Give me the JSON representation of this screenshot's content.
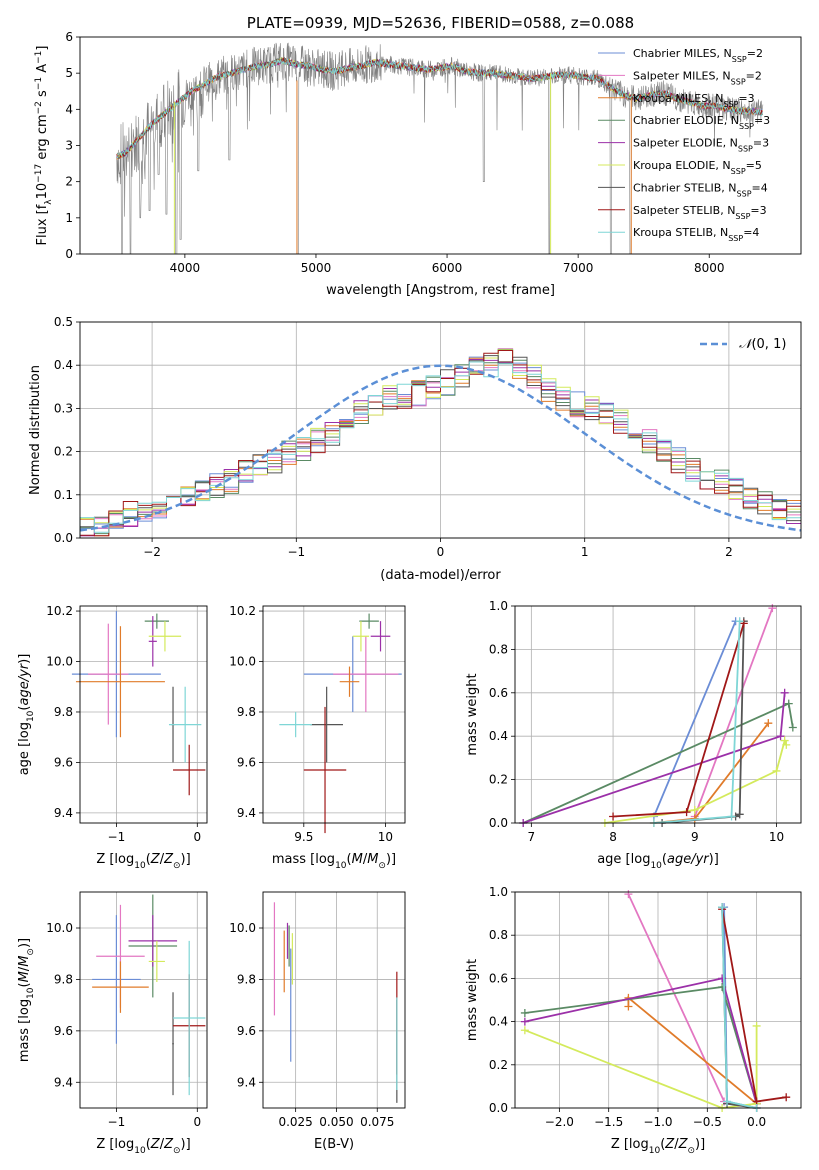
{
  "colors": {
    "Chabrier MILES": "#6b8dd6",
    "Salpeter MILES": "#e377c2",
    "Kroupa MILES": "#e07b2a",
    "Chabrier ELODIE": "#5a8a64",
    "Salpeter ELODIE": "#9b30a8",
    "Kroupa ELODIE": "#d4ea5c",
    "Chabrier STELIB": "#555555",
    "Salpeter STELIB": "#a01818",
    "Kroupa STELIB": "#7fd6d6",
    "data": "#808080",
    "gauss": "#5b8fd6"
  },
  "models": [
    {
      "key": "Chabrier MILES",
      "label": "Chabrier MILES, N",
      "nssp": "=2"
    },
    {
      "key": "Salpeter MILES",
      "label": "Salpeter MILES, N",
      "nssp": "=2"
    },
    {
      "key": "Kroupa MILES",
      "label": "Kroupa MILES, N",
      "nssp": "=3"
    },
    {
      "key": "Chabrier ELODIE",
      "label": "Chabrier ELODIE, N",
      "nssp": "=3"
    },
    {
      "key": "Salpeter ELODIE",
      "label": "Salpeter ELODIE, N",
      "nssp": "=3"
    },
    {
      "key": "Kroupa ELODIE",
      "label": "Kroupa ELODIE, N",
      "nssp": "=5"
    },
    {
      "key": "Chabrier STELIB",
      "label": "Chabrier STELIB, N",
      "nssp": "=4"
    },
    {
      "key": "Salpeter STELIB",
      "label": "Salpeter STELIB, N",
      "nssp": "=3"
    },
    {
      "key": "Kroupa STELIB",
      "label": "Kroupa STELIB, N",
      "nssp": "=4"
    }
  ],
  "chart_data": [
    {
      "type": "line",
      "title": "PLATE=0939, MJD=52636, FIBERID=0588, z=0.088",
      "xlabel": "wavelength [Angstrom, rest frame]",
      "ylabel": "Flux [f",
      "xlim": [
        3200,
        8700
      ],
      "ylim": [
        0,
        6
      ],
      "xticks": [
        4000,
        5000,
        6000,
        7000,
        8000
      ],
      "yticks": [
        0,
        1,
        2,
        3,
        4,
        5,
        6
      ],
      "spectrum_nodes": {
        "x": [
          3480,
          3550,
          3650,
          3750,
          3850,
          3950,
          4050,
          4150,
          4250,
          4350,
          4450,
          4550,
          4650,
          4750,
          4850,
          4950,
          5050,
          5150,
          5250,
          5350,
          5450,
          5550,
          5650,
          5750,
          5850,
          5950,
          6050,
          6150,
          6250,
          6350,
          6450,
          6550,
          6650,
          6750,
          6850,
          6950,
          7050,
          7150,
          7250,
          7350,
          7450,
          7550,
          7650,
          7750,
          7850,
          7950,
          8050,
          8150,
          8250,
          8350,
          8410
        ],
        "y": [
          2.7,
          2.8,
          3.2,
          3.6,
          3.9,
          4.2,
          4.5,
          4.7,
          4.9,
          5.0,
          5.1,
          5.2,
          5.25,
          5.35,
          5.25,
          5.2,
          5.1,
          5.05,
          5.15,
          5.2,
          5.3,
          5.25,
          5.2,
          5.15,
          5.1,
          5.15,
          5.2,
          5.05,
          5.0,
          5.0,
          4.95,
          4.9,
          4.85,
          4.9,
          4.95,
          4.95,
          4.9,
          4.85,
          4.6,
          4.4,
          4.3,
          4.4,
          4.45,
          4.3,
          4.2,
          4.1,
          4.1,
          4.0,
          3.95,
          3.95,
          3.9
        ]
      },
      "spectrum_dips": [
        {
          "x": 3520,
          "y": 0.0
        },
        {
          "x": 3585,
          "y": 0.0
        },
        {
          "x": 3660,
          "y": 1.0
        },
        {
          "x": 3730,
          "y": 1.2
        },
        {
          "x": 3800,
          "y": 2.2
        },
        {
          "x": 3860,
          "y": 1.1
        },
        {
          "x": 3934,
          "y": 0.0
        },
        {
          "x": 3968,
          "y": 0.4
        },
        {
          "x": 4102,
          "y": 2.3
        },
        {
          "x": 4340,
          "y": 2.6
        },
        {
          "x": 4861,
          "y": 0.0
        },
        {
          "x": 6280,
          "y": 2.0
        },
        {
          "x": 6780,
          "y": 0.0
        },
        {
          "x": 7250,
          "y": 0.0
        },
        {
          "x": 7400,
          "y": 0.0
        }
      ]
    },
    {
      "type": "bar",
      "xlabel": "(data-model)/error",
      "ylabel": "Normed distribution",
      "xlim": [
        -2.5,
        2.5
      ],
      "ylim": [
        0,
        0.5
      ],
      "xticks": [
        -2,
        -1,
        0,
        1,
        2
      ],
      "yticks": [
        0.0,
        0.1,
        0.2,
        0.3,
        0.4,
        0.5
      ],
      "legend": "$\\mathcal{N}(0,1)$",
      "bin_edges_start": -2.5,
      "bin_width": 0.1,
      "envelope": [
        0.025,
        0.025,
        0.04,
        0.055,
        0.06,
        0.075,
        0.08,
        0.095,
        0.11,
        0.12,
        0.13,
        0.15,
        0.165,
        0.18,
        0.195,
        0.205,
        0.225,
        0.24,
        0.26,
        0.29,
        0.31,
        0.325,
        0.33,
        0.335,
        0.35,
        0.36,
        0.375,
        0.39,
        0.4,
        0.41,
        0.395,
        0.375,
        0.34,
        0.32,
        0.31,
        0.3,
        0.285,
        0.27,
        0.25,
        0.225,
        0.2,
        0.18,
        0.16,
        0.14,
        0.13,
        0.11,
        0.095,
        0.085,
        0.07,
        0.06
      ]
    },
    {
      "type": "scatter",
      "xlabel": "Z [log",
      "ylabel": "age  [log",
      "xlim": [
        -1.45,
        0.12
      ],
      "ylim": [
        9.36,
        10.22
      ],
      "xticks": [
        -1,
        0
      ],
      "yticks": [
        9.4,
        9.6,
        9.8,
        10.0,
        10.2
      ],
      "points": [
        {
          "model": "Chabrier MILES",
          "x": -1.0,
          "y": 9.95,
          "xerr": 0.55,
          "yerr": 0.25
        },
        {
          "model": "Salpeter MILES",
          "x": -1.1,
          "y": 9.95,
          "xerr": 0.25,
          "yerr": 0.2
        },
        {
          "model": "Kroupa MILES",
          "x": -0.95,
          "y": 9.92,
          "xerr": 0.55,
          "yerr": 0.22
        },
        {
          "model": "Chabrier ELODIE",
          "x": -0.5,
          "y": 10.16,
          "xerr": 0.15,
          "yerr": 0.03
        },
        {
          "model": "Salpeter ELODIE",
          "x": -0.55,
          "y": 10.08,
          "xerr": 0.05,
          "yerr": 0.1
        },
        {
          "model": "Kroupa ELODIE",
          "x": -0.4,
          "y": 10.1,
          "xerr": 0.2,
          "yerr": 0.06
        },
        {
          "model": "Chabrier STELIB",
          "x": -0.3,
          "y": 9.75,
          "xerr": 0.02,
          "yerr": 0.15
        },
        {
          "model": "Salpeter STELIB",
          "x": -0.1,
          "y": 9.57,
          "xerr": 0.2,
          "yerr": 0.1
        },
        {
          "model": "Kroupa STELIB",
          "x": -0.15,
          "y": 9.75,
          "xerr": 0.2,
          "yerr": 0.15
        }
      ]
    },
    {
      "type": "scatter",
      "xlabel": "mass [log",
      "ylabel": "",
      "xlim": [
        9.25,
        10.12
      ],
      "ylim": [
        9.36,
        10.22
      ],
      "xticks": [
        9.5,
        10.0
      ],
      "yticks": [
        9.4,
        9.6,
        9.8,
        10.0,
        10.2
      ],
      "points": [
        {
          "model": "Chabrier MILES",
          "x": 9.8,
          "y": 9.95,
          "xerr": 0.3,
          "yerr": 0.15
        },
        {
          "model": "Salpeter MILES",
          "x": 9.88,
          "y": 9.95,
          "xerr": 0.2,
          "yerr": 0.15
        },
        {
          "model": "Kroupa MILES",
          "x": 9.78,
          "y": 9.92,
          "xerr": 0.06,
          "yerr": 0.06
        },
        {
          "model": "Chabrier ELODIE",
          "x": 9.9,
          "y": 10.16,
          "xerr": 0.06,
          "yerr": 0.03
        },
        {
          "model": "Salpeter ELODIE",
          "x": 9.97,
          "y": 10.1,
          "xerr": 0.06,
          "yerr": 0.06
        },
        {
          "model": "Kroupa ELODIE",
          "x": 9.85,
          "y": 10.1,
          "xerr": 0.05,
          "yerr": 0.06
        },
        {
          "model": "Chabrier STELIB",
          "x": 9.64,
          "y": 9.75,
          "xerr": 0.1,
          "yerr": 0.15
        },
        {
          "model": "Salpeter STELIB",
          "x": 9.63,
          "y": 9.57,
          "xerr": 0.13,
          "yerr": 0.25
        },
        {
          "model": "Kroupa STELIB",
          "x": 9.45,
          "y": 9.75,
          "xerr": 0.1,
          "yerr": 0.05
        }
      ]
    },
    {
      "type": "line",
      "xlabel": "age  [log",
      "ylabel": "mass weight",
      "xlim": [
        6.8,
        10.3
      ],
      "ylim": [
        0,
        1
      ],
      "xticks": [
        7,
        8,
        9,
        10
      ],
      "yticks": [
        0.0,
        0.2,
        0.4,
        0.6,
        0.8,
        1.0
      ],
      "series": [
        {
          "model": "Chabrier MILES",
          "x": [
            8.5,
            9.5
          ],
          "y": [
            0.03,
            0.93
          ]
        },
        {
          "model": "Salpeter MILES",
          "x": [
            9.0,
            9.95
          ],
          "y": [
            0.03,
            0.99
          ]
        },
        {
          "model": "Kroupa MILES",
          "x": [
            8.5,
            9.0,
            9.9
          ],
          "y": [
            0.0,
            0.02,
            0.46
          ]
        },
        {
          "model": "Chabrier ELODIE",
          "x": [
            6.9,
            10.15,
            10.2
          ],
          "y": [
            0.0,
            0.55,
            0.44
          ]
        },
        {
          "model": "Salpeter ELODIE",
          "x": [
            6.9,
            10.05,
            10.1
          ],
          "y": [
            0.0,
            0.4,
            0.6
          ]
        },
        {
          "model": "Kroupa ELODIE",
          "x": [
            7.9,
            9.0,
            10.0,
            10.1,
            10.12
          ],
          "y": [
            0.0,
            0.06,
            0.24,
            0.38,
            0.36
          ]
        },
        {
          "model": "Chabrier STELIB",
          "x": [
            8.6,
            9.5,
            9.55,
            9.6
          ],
          "y": [
            0.0,
            0.03,
            0.04,
            0.93
          ]
        },
        {
          "model": "Salpeter STELIB",
          "x": [
            8.0,
            8.9,
            9.6
          ],
          "y": [
            0.03,
            0.05,
            0.92
          ]
        },
        {
          "model": "Kroupa STELIB",
          "x": [
            8.5,
            9.45,
            9.55
          ],
          "y": [
            0.0,
            0.03,
            0.93
          ]
        }
      ]
    },
    {
      "type": "scatter",
      "xlabel": "Z [log",
      "ylabel": "mass [log",
      "xlim": [
        -1.45,
        0.12
      ],
      "ylim": [
        9.3,
        10.14
      ],
      "xticks": [
        -1,
        0
      ],
      "yticks": [
        9.4,
        9.6,
        9.8,
        10.0
      ],
      "points": [
        {
          "model": "Chabrier MILES",
          "x": -1.0,
          "y": 9.8,
          "xerr": 0.3,
          "yerr": 0.25
        },
        {
          "model": "Salpeter MILES",
          "x": -0.95,
          "y": 9.89,
          "xerr": 0.3,
          "yerr": 0.2
        },
        {
          "model": "Kroupa MILES",
          "x": -0.95,
          "y": 9.77,
          "xerr": 0.35,
          "yerr": 0.1
        },
        {
          "model": "Chabrier ELODIE",
          "x": -0.55,
          "y": 9.93,
          "xerr": 0.3,
          "yerr": 0.2
        },
        {
          "model": "Salpeter ELODIE",
          "x": -0.55,
          "y": 9.95,
          "xerr": 0.3,
          "yerr": 0.1
        },
        {
          "model": "Kroupa ELODIE",
          "x": -0.5,
          "y": 9.87,
          "xerr": 0.1,
          "yerr": 0.08
        },
        {
          "model": "Chabrier STELIB",
          "x": -0.3,
          "y": 9.55,
          "xerr": 0.01,
          "yerr": 0.2
        },
        {
          "model": "Salpeter STELIB",
          "x": -0.1,
          "y": 9.62,
          "xerr": 0.2,
          "yerr": 0.2
        },
        {
          "model": "Kroupa STELIB",
          "x": -0.1,
          "y": 9.65,
          "xerr": 0.2,
          "yerr": 0.3
        }
      ]
    },
    {
      "type": "scatter",
      "xlabel": "E(B-V)",
      "ylabel": "",
      "xlim": [
        0.005,
        0.092
      ],
      "ylim": [
        9.3,
        10.14
      ],
      "xticks": [
        0.025,
        0.05,
        0.075
      ],
      "xticklabels": [
        "0.025",
        "0.050",
        "0.075"
      ],
      "yticks": [
        9.4,
        9.6,
        9.8,
        10.0
      ],
      "points": [
        {
          "model": "Chabrier MILES",
          "x": 0.022,
          "y": 9.7,
          "xerr": 0,
          "yerr": 0.22
        },
        {
          "model": "Salpeter MILES",
          "x": 0.012,
          "y": 9.88,
          "xerr": 0,
          "yerr": 0.22
        },
        {
          "model": "Kroupa MILES",
          "x": 0.018,
          "y": 9.87,
          "xerr": 0,
          "yerr": 0.12
        },
        {
          "model": "Chabrier ELODIE",
          "x": 0.021,
          "y": 9.93,
          "xerr": 0,
          "yerr": 0.08
        },
        {
          "model": "Salpeter ELODIE",
          "x": 0.02,
          "y": 9.95,
          "xerr": 0,
          "yerr": 0.07
        },
        {
          "model": "Kroupa ELODIE",
          "x": 0.023,
          "y": 9.88,
          "xerr": 0,
          "yerr": 0.1
        },
        {
          "model": "Chabrier STELIB",
          "x": 0.087,
          "y": 9.52,
          "xerr": 0,
          "yerr": 0.2
        },
        {
          "model": "Salpeter STELIB",
          "x": 0.087,
          "y": 9.63,
          "xerr": 0,
          "yerr": 0.2
        },
        {
          "model": "Kroupa STELIB",
          "x": 0.087,
          "y": 9.55,
          "xerr": 0,
          "yerr": 0.18
        }
      ]
    },
    {
      "type": "line",
      "xlabel": "Z [log",
      "ylabel": "mass weight",
      "xlim": [
        -2.45,
        0.45
      ],
      "ylim": [
        0,
        1
      ],
      "xticks": [
        -2.0,
        -1.5,
        -1.0,
        -0.5,
        0.0
      ],
      "xticklabels": [
        "−2.0",
        "−1.5",
        "−1.0",
        "−0.5",
        "0.0"
      ],
      "yticks": [
        0.0,
        0.2,
        0.4,
        0.6,
        0.8,
        1.0
      ],
      "series": [
        {
          "model": "Chabrier MILES",
          "x": [
            -0.33,
            -0.3,
            0.0
          ],
          "y": [
            0.93,
            0.03,
            0.0
          ]
        },
        {
          "model": "Salpeter MILES",
          "x": [
            -1.3,
            -0.33,
            0.0
          ],
          "y": [
            0.99,
            0.03,
            0.0
          ]
        },
        {
          "model": "Kroupa MILES",
          "x": [
            -1.3,
            -1.3,
            0.0
          ],
          "y": [
            0.47,
            0.51,
            0.02
          ]
        },
        {
          "model": "Chabrier ELODIE",
          "x": [
            -2.35,
            -0.35,
            0.0
          ],
          "y": [
            0.44,
            0.56,
            0.02
          ]
        },
        {
          "model": "Salpeter ELODIE",
          "x": [
            -2.35,
            -0.35,
            0.0
          ],
          "y": [
            0.4,
            0.6,
            0.02
          ]
        },
        {
          "model": "Kroupa ELODIE",
          "x": [
            -2.35,
            -0.35,
            0.0,
            0.0
          ],
          "y": [
            0.36,
            0.0,
            0.02,
            0.38
          ]
        },
        {
          "model": "Chabrier STELIB",
          "x": [
            -0.35,
            -0.3,
            0.0
          ],
          "y": [
            0.93,
            0.02,
            0.0
          ]
        },
        {
          "model": "Salpeter STELIB",
          "x": [
            -0.35,
            0.0,
            0.3
          ],
          "y": [
            0.92,
            0.03,
            0.05
          ]
        },
        {
          "model": "Kroupa STELIB",
          "x": [
            -0.35,
            -0.3,
            0.0
          ],
          "y": [
            0.93,
            0.03,
            0.0
          ]
        }
      ]
    }
  ]
}
